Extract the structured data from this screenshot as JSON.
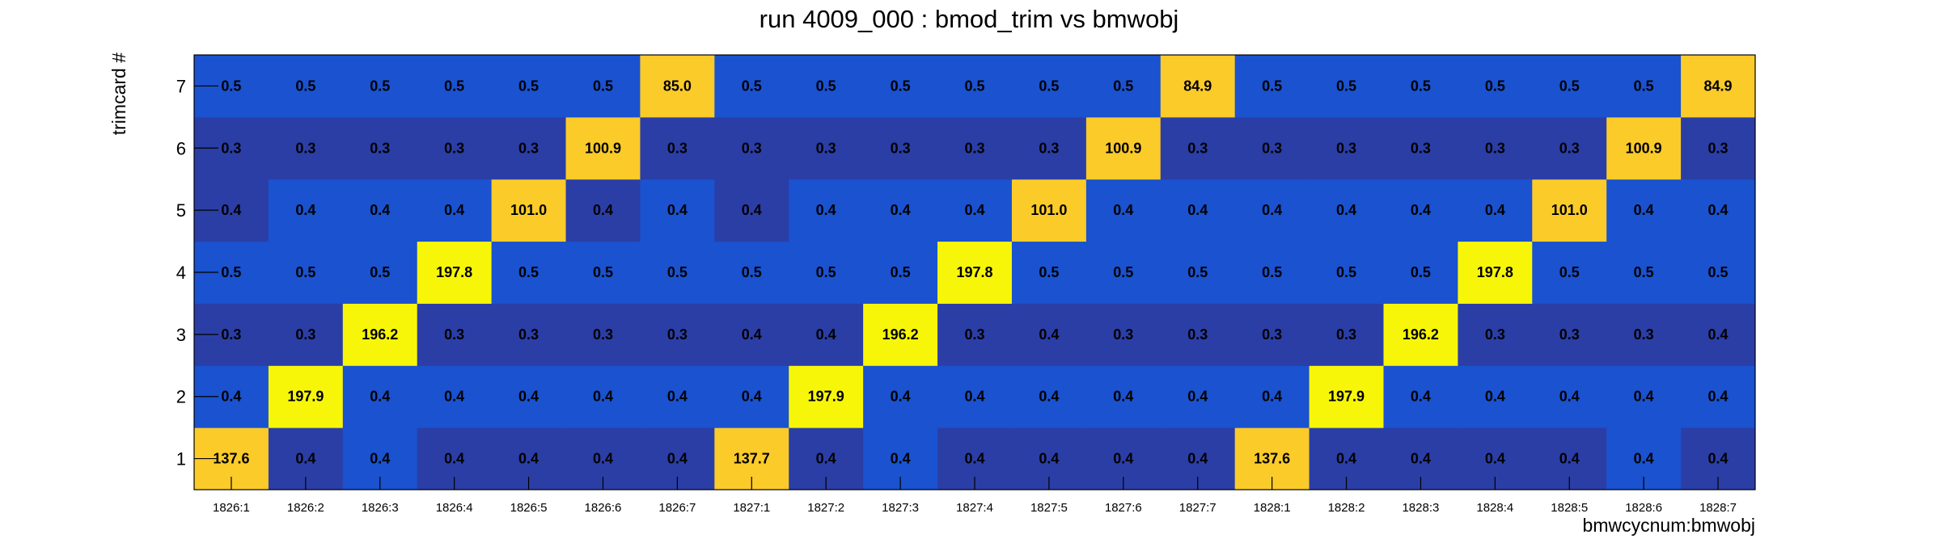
{
  "chart_data": {
    "type": "heatmap",
    "title": "run 4009_000 : bmod_trim vs bmwobj",
    "xlabel": "bmwcycnum:bmwobj",
    "ylabel": "trimcard #",
    "x_categories": [
      "1826:1",
      "1826:2",
      "1826:3",
      "1826:4",
      "1826:5",
      "1826:6",
      "1826:7",
      "1827:1",
      "1827:2",
      "1827:3",
      "1827:4",
      "1827:5",
      "1827:6",
      "1827:7",
      "1828:1",
      "1828:2",
      "1828:3",
      "1828:4",
      "1828:5",
      "1828:6",
      "1828:7"
    ],
    "y_categories": [
      "1",
      "2",
      "3",
      "4",
      "5",
      "6",
      "7"
    ],
    "values": [
      [
        "137.6",
        "0.4",
        "0.4",
        "0.4",
        "0.4",
        "0.4",
        "0.4",
        "137.7",
        "0.4",
        "0.4",
        "0.4",
        "0.4",
        "0.4",
        "0.4",
        "137.6",
        "0.4",
        "0.4",
        "0.4",
        "0.4",
        "0.4",
        "0.4"
      ],
      [
        "0.4",
        "197.9",
        "0.4",
        "0.4",
        "0.4",
        "0.4",
        "0.4",
        "0.4",
        "197.9",
        "0.4",
        "0.4",
        "0.4",
        "0.4",
        "0.4",
        "0.4",
        "197.9",
        "0.4",
        "0.4",
        "0.4",
        "0.4",
        "0.4"
      ],
      [
        "0.3",
        "0.3",
        "196.2",
        "0.3",
        "0.3",
        "0.3",
        "0.3",
        "0.4",
        "0.4",
        "196.2",
        "0.3",
        "0.4",
        "0.3",
        "0.3",
        "0.3",
        "0.3",
        "196.2",
        "0.3",
        "0.3",
        "0.3",
        "0.4"
      ],
      [
        "0.5",
        "0.5",
        "0.5",
        "197.8",
        "0.5",
        "0.5",
        "0.5",
        "0.5",
        "0.5",
        "0.5",
        "197.8",
        "0.5",
        "0.5",
        "0.5",
        "0.5",
        "0.5",
        "0.5",
        "197.8",
        "0.5",
        "0.5",
        "0.5"
      ],
      [
        "0.4",
        "0.4",
        "0.4",
        "0.4",
        "101.0",
        "0.4",
        "0.4",
        "0.4",
        "0.4",
        "0.4",
        "0.4",
        "101.0",
        "0.4",
        "0.4",
        "0.4",
        "0.4",
        "0.4",
        "0.4",
        "101.0",
        "0.4",
        "0.4"
      ],
      [
        "0.3",
        "0.3",
        "0.3",
        "0.3",
        "0.3",
        "100.9",
        "0.3",
        "0.3",
        "0.3",
        "0.3",
        "0.3",
        "0.3",
        "100.9",
        "0.3",
        "0.3",
        "0.3",
        "0.3",
        "0.3",
        "0.3",
        "100.9",
        "0.3"
      ],
      [
        "0.5",
        "0.5",
        "0.5",
        "0.5",
        "0.5",
        "0.5",
        "85.0",
        "0.5",
        "0.5",
        "0.5",
        "0.5",
        "0.5",
        "0.5",
        "84.9",
        "0.5",
        "0.5",
        "0.5",
        "0.5",
        "0.5",
        "0.5",
        "84.9"
      ]
    ],
    "low_value_shades": [
      [
        1,
        1,
        0,
        1,
        1,
        1,
        1,
        0,
        1,
        0,
        1,
        1,
        1,
        1,
        1,
        1,
        1,
        1,
        1,
        0,
        1
      ],
      [
        0,
        0,
        0,
        0,
        0,
        0,
        0,
        0,
        0,
        0,
        0,
        0,
        0,
        0,
        0,
        0,
        0,
        0,
        0,
        0,
        0
      ],
      [
        1,
        1,
        1,
        1,
        1,
        1,
        1,
        1,
        1,
        1,
        1,
        1,
        1,
        1,
        1,
        1,
        1,
        1,
        1,
        1,
        1
      ],
      [
        0,
        0,
        0,
        0,
        0,
        0,
        0,
        0,
        0,
        0,
        0,
        0,
        0,
        0,
        0,
        0,
        0,
        0,
        0,
        0,
        0
      ],
      [
        1,
        0,
        0,
        0,
        0,
        1,
        0,
        1,
        0,
        0,
        0,
        0,
        0,
        0,
        0,
        0,
        0,
        0,
        0,
        0,
        0
      ],
      [
        1,
        1,
        1,
        1,
        1,
        1,
        1,
        1,
        1,
        1,
        1,
        1,
        1,
        1,
        1,
        1,
        1,
        1,
        1,
        1,
        1
      ],
      [
        0,
        0,
        0,
        0,
        0,
        0,
        0,
        0,
        0,
        0,
        0,
        0,
        0,
        0,
        0,
        0,
        0,
        0,
        0,
        0,
        0
      ]
    ],
    "colors": {
      "low_dark": "#2b3ea6",
      "low_light": "#1a52cf",
      "mid": "#fbcb2a",
      "high": "#f8f608"
    },
    "color_thresholds": {
      "mid_max": 150
    },
    "grid": false,
    "legend": "none"
  }
}
